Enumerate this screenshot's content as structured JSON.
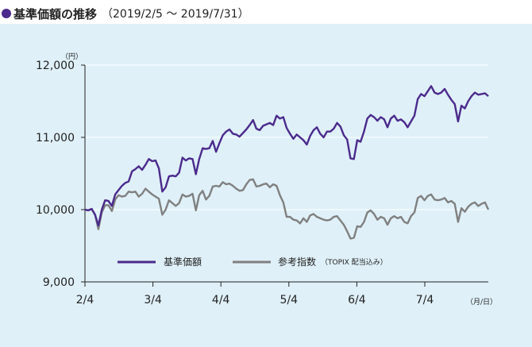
{
  "title": {
    "main": "基準価額の推移",
    "period": "（2019/2/5 ～ 2019/7/31）"
  },
  "chart_data": {
    "type": "line",
    "y_unit": "（円）",
    "x_unit": "（月/日）",
    "ylim": [
      9000,
      12000
    ],
    "y_ticks": [
      9000,
      10000,
      11000,
      12000
    ],
    "y_tick_labels": [
      "9,000",
      "10,000",
      "11,000",
      "12,000"
    ],
    "x_tick_labels": [
      "2/4",
      "3/4",
      "4/4",
      "5/4",
      "6/4",
      "7/4"
    ],
    "colors": {
      "fund": "#4b2a8c",
      "index": "#808080"
    },
    "legend": {
      "fund": "基準価額",
      "index": "参考指数",
      "index_note": "（TOPIX 配当込み）"
    },
    "series": [
      {
        "name": "基準価額",
        "values": [
          10000,
          9990,
          10010,
          9930,
          9780,
          10000,
          10130,
          10120,
          10050,
          10210,
          10270,
          10330,
          10370,
          10390,
          10530,
          10560,
          10600,
          10550,
          10620,
          10700,
          10670,
          10680,
          10570,
          10250,
          10310,
          10460,
          10470,
          10460,
          10510,
          10720,
          10680,
          10710,
          10700,
          10490,
          10700,
          10850,
          10840,
          10850,
          10950,
          10800,
          10920,
          11030,
          11080,
          11110,
          11050,
          11040,
          11010,
          11060,
          11110,
          11170,
          11240,
          11120,
          11100,
          11160,
          11180,
          11200,
          11170,
          11300,
          11260,
          11280,
          11130,
          11050,
          10980,
          11040,
          11000,
          10960,
          10900,
          11020,
          11100,
          11140,
          11050,
          11000,
          11080,
          11080,
          11120,
          11200,
          11150,
          11030,
          10970,
          10710,
          10700,
          10960,
          10940,
          11080,
          11260,
          11310,
          11280,
          11230,
          11280,
          11250,
          11140,
          11260,
          11300,
          11230,
          11250,
          11210,
          11140,
          11220,
          11300,
          11530,
          11600,
          11570,
          11640,
          11710,
          11620,
          11600,
          11620,
          11670,
          11590,
          11520,
          11460,
          11220,
          11440,
          11400,
          11500,
          11570,
          11620,
          11590,
          11600,
          11610,
          11570
        ]
      },
      {
        "name": "参考指数",
        "values": [
          10000,
          9990,
          10010,
          9930,
          9730,
          9960,
          10060,
          10060,
          9980,
          10140,
          10200,
          10180,
          10190,
          10250,
          10240,
          10250,
          10180,
          10220,
          10290,
          10250,
          10210,
          10180,
          10150,
          9930,
          10000,
          10130,
          10090,
          10050,
          10090,
          10210,
          10180,
          10190,
          10220,
          9990,
          10200,
          10260,
          10140,
          10190,
          10320,
          10330,
          10320,
          10380,
          10350,
          10360,
          10330,
          10290,
          10260,
          10270,
          10350,
          10410,
          10420,
          10320,
          10330,
          10350,
          10360,
          10310,
          10350,
          10330,
          10200,
          10100,
          9900,
          9900,
          9860,
          9850,
          9810,
          9880,
          9830,
          9920,
          9940,
          9900,
          9880,
          9860,
          9850,
          9860,
          9900,
          9910,
          9850,
          9790,
          9700,
          9600,
          9610,
          9770,
          9760,
          9830,
          9960,
          9990,
          9940,
          9860,
          9900,
          9880,
          9790,
          9880,
          9910,
          9880,
          9900,
          9830,
          9810,
          9910,
          9960,
          10160,
          10190,
          10130,
          10190,
          10210,
          10140,
          10130,
          10140,
          10160,
          10100,
          10120,
          10080,
          9830,
          10020,
          9970,
          10040,
          10080,
          10100,
          10050,
          10080,
          10100,
          10000
        ]
      }
    ]
  }
}
